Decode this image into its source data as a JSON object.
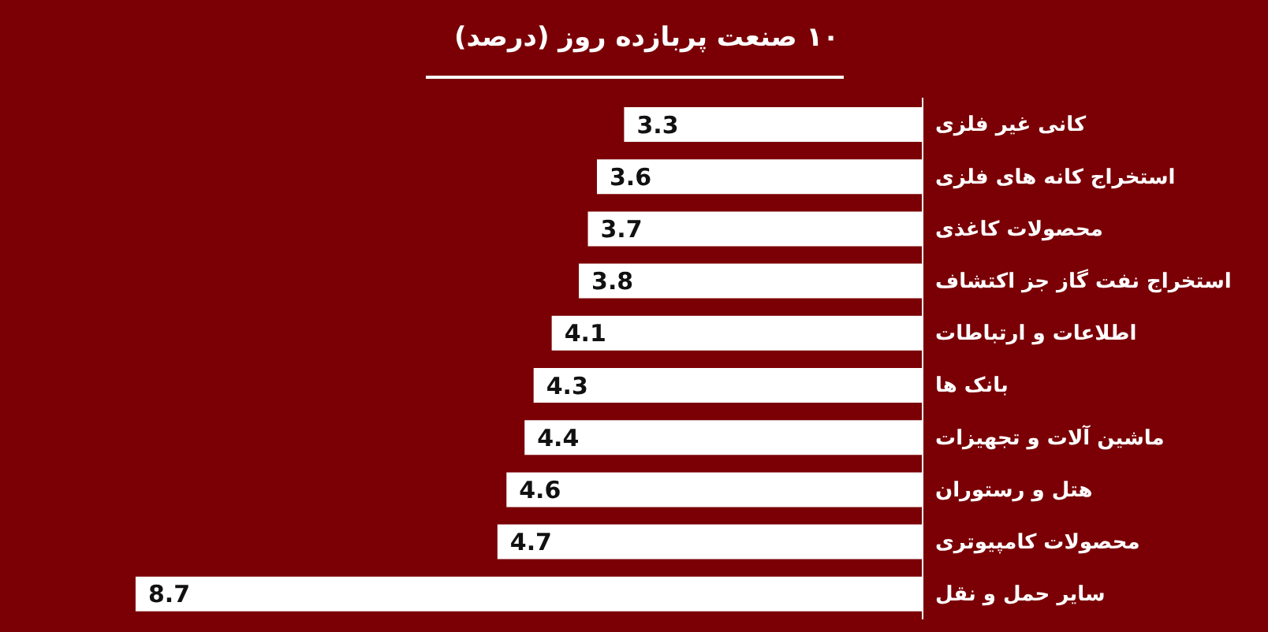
{
  "chart_data": {
    "type": "bar",
    "orientation": "horizontal",
    "title": "۱۰ صنعت پربازده روز (درصد)",
    "categories": [
      "کانی غیر فلزی",
      "استخراج کانه های فلزی",
      "محصولات کاغذی",
      "استخراج نفت گاز جز اکتشاف",
      "اطلاعات و ارتباطات",
      "بانک ها",
      "ماشین آلات و تجهیزات",
      "هتل و رستوران",
      "محصولات کامپیوتری",
      "سایر حمل و نقل"
    ],
    "values": [
      3.3,
      3.6,
      3.7,
      3.8,
      4.1,
      4.3,
      4.4,
      4.6,
      4.7,
      8.7
    ],
    "color": "#ffffff",
    "data_labels": true,
    "relative": false
  }
}
